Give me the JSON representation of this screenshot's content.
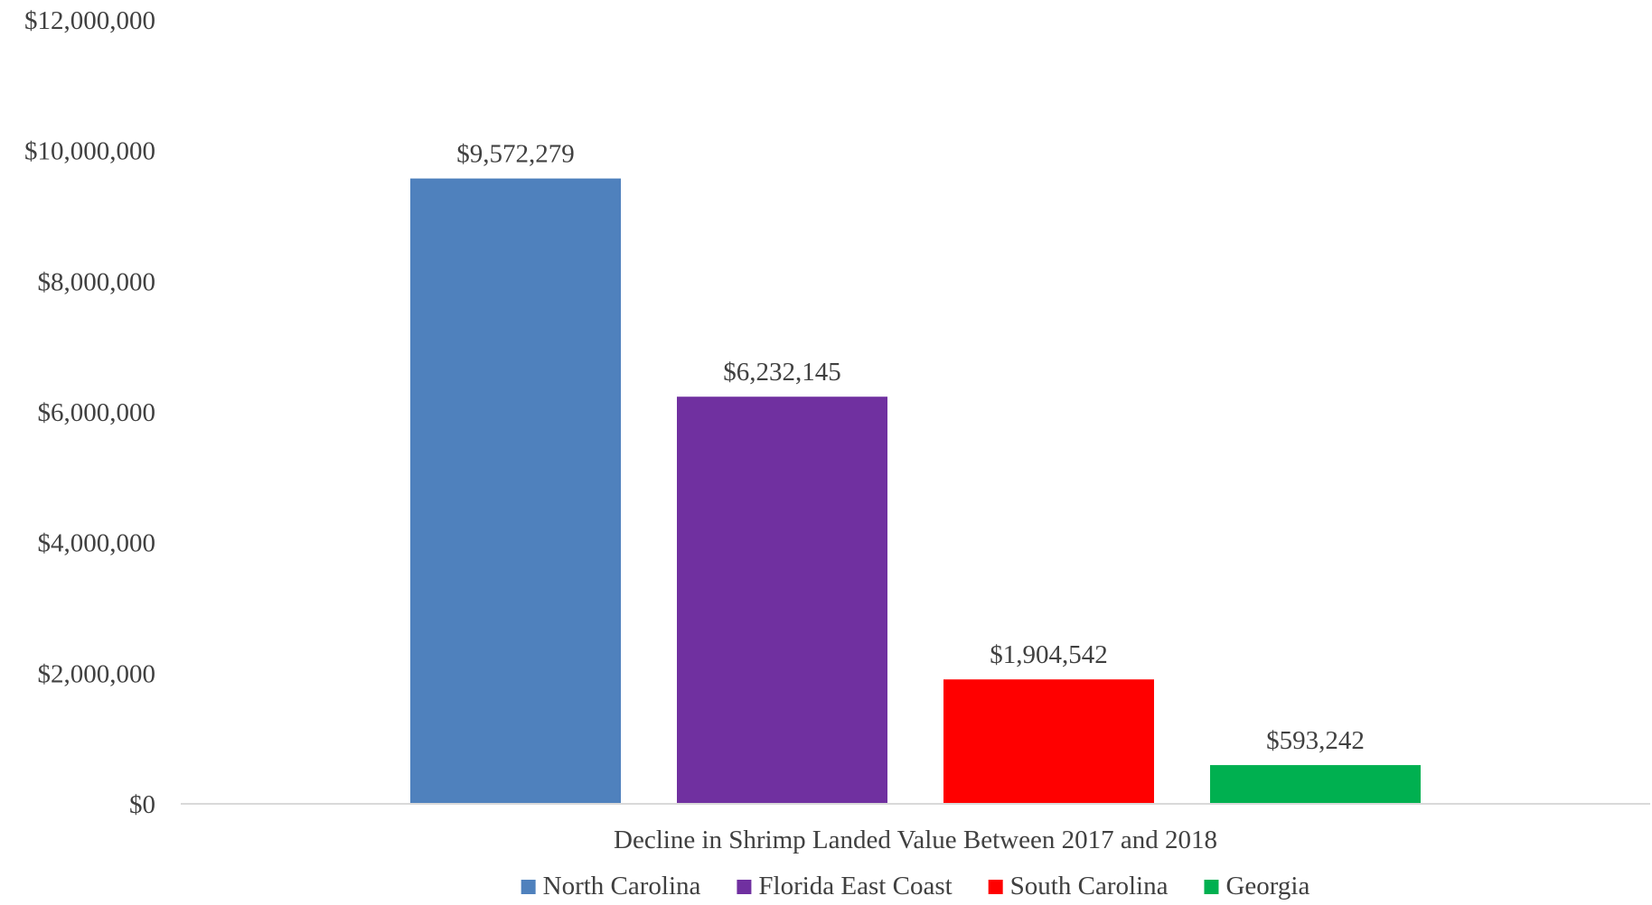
{
  "chart_data": {
    "type": "bar",
    "title": "",
    "categories": [
      "Decline in Shrimp Landed Value Between 2017 and 2018"
    ],
    "series": [
      {
        "name": "North Carolina",
        "values": [
          9572279
        ],
        "label": "$9,572,279",
        "color": "#4f81bd"
      },
      {
        "name": "Florida East Coast",
        "values": [
          6232145
        ],
        "label": "$6,232,145",
        "color": "#7030a0"
      },
      {
        "name": "South Carolina",
        "values": [
          1904542
        ],
        "label": "$1,904,542",
        "color": "#ff0000"
      },
      {
        "name": "Georgia",
        "values": [
          593242
        ],
        "label": "$593,242",
        "color": "#00b050"
      }
    ],
    "yaxis": {
      "min": 0,
      "max": 12000000,
      "ticks": [
        0,
        2000000,
        4000000,
        6000000,
        8000000,
        10000000,
        12000000
      ],
      "tick_labels": [
        "$0",
        "$2,000,000",
        "$4,000,000",
        "$6,000,000",
        "$8,000,000",
        "$10,000,000",
        "$12,000,000"
      ]
    },
    "xlabel": "",
    "ylabel": "",
    "grid": false,
    "legend": "bottom"
  }
}
